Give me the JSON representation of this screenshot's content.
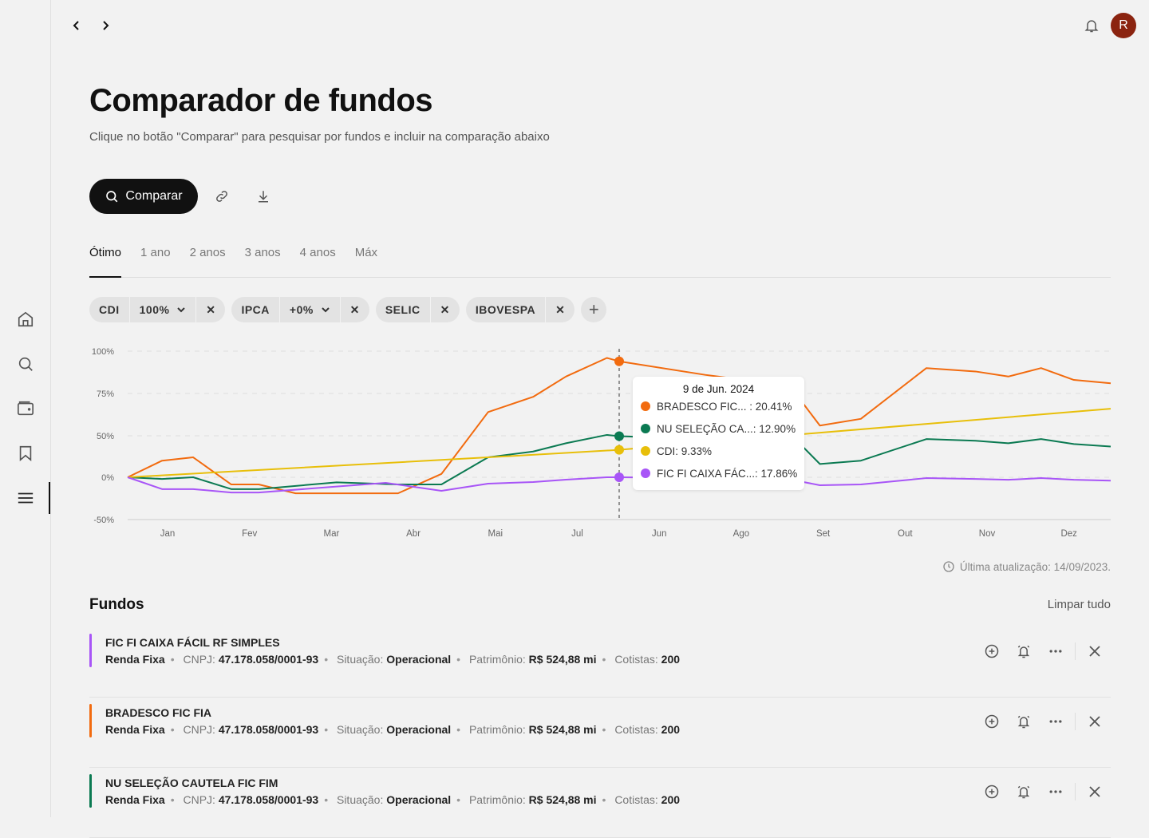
{
  "header": {
    "avatar_initial": "R"
  },
  "page": {
    "title": "Comparador de fundos",
    "subtitle": "Clique no botão \"Comparar\" para pesquisar por fundos e incluir na comparação abaixo",
    "compare_label": "Comparar"
  },
  "tabs": [
    {
      "label": "Ótimo",
      "active": true
    },
    {
      "label": "1 ano"
    },
    {
      "label": "2 anos"
    },
    {
      "label": "3 anos"
    },
    {
      "label": "4 anos"
    },
    {
      "label": "Máx"
    }
  ],
  "chips": {
    "cdi": "CDI",
    "cdi_pct": "100%",
    "ipca": "IPCA",
    "ipca_pct": "+0%",
    "selic": "SELIC",
    "ibovespa": "IBOVESPA"
  },
  "tooltip": {
    "date": "9 de Jun. 2024",
    "rows": [
      {
        "label": "BRADESCO FIC...   : 20.41%",
        "color": "#f26b0f"
      },
      {
        "label": "NU SELEÇÃO CA...: 12.90%",
        "color": "#0b7a52"
      },
      {
        "label": "CDI: 9.33%",
        "color": "#e8bf0a"
      },
      {
        "label": "FIC FI CAIXA FÁC...: 17.86%",
        "color": "#a855f7"
      }
    ]
  },
  "chart_data": {
    "type": "line",
    "yticks": [
      "100%",
      "75%",
      "50%",
      "0%",
      "-50%"
    ],
    "ytick_values": [
      100,
      75,
      50,
      0,
      -50
    ],
    "categories": [
      "Jan",
      "Fev",
      "Mar",
      "Abr",
      "Mai",
      "Jul",
      "Jun",
      "Ago",
      "Set",
      "Out",
      "Nov",
      "Dez"
    ],
    "x_range": [
      0,
      24
    ],
    "hover_index": 12,
    "series": [
      {
        "name": "BRADESCO FIC FIA",
        "color": "#f26b0f",
        "points": [
          [
            0,
            0
          ],
          [
            0.84,
            20
          ],
          [
            1.6,
            24
          ],
          [
            2.53,
            -8.5
          ],
          [
            3.2,
            -8.5
          ],
          [
            4.1,
            -19
          ],
          [
            6.6,
            -19
          ],
          [
            7.66,
            4
          ],
          [
            8.8,
            64
          ],
          [
            9.9,
            73
          ],
          [
            10.7,
            85
          ],
          [
            11.7,
            96
          ],
          [
            12,
            94
          ],
          [
            14.1,
            86
          ],
          [
            15.4,
            82
          ],
          [
            16.4,
            72
          ],
          [
            16.9,
            56
          ],
          [
            17.9,
            60
          ],
          [
            19.5,
            90
          ],
          [
            20.7,
            88
          ],
          [
            21.5,
            85
          ],
          [
            22.3,
            90
          ],
          [
            23.1,
            83
          ],
          [
            24,
            81
          ]
        ]
      },
      {
        "name": "NU SELEÇÃO CAUTELA FIC FIM",
        "color": "#0b7a52",
        "points": [
          [
            0,
            0
          ],
          [
            0.84,
            -2
          ],
          [
            1.6,
            0
          ],
          [
            2.53,
            -14
          ],
          [
            3.2,
            -14
          ],
          [
            5.1,
            -6
          ],
          [
            6.6,
            -8.5
          ],
          [
            7.66,
            -8.5
          ],
          [
            8.8,
            24
          ],
          [
            9.9,
            31
          ],
          [
            10.7,
            41
          ],
          [
            11.7,
            50.5
          ],
          [
            12,
            49.5
          ],
          [
            14,
            46
          ],
          [
            15.5,
            44
          ],
          [
            16.5,
            36
          ],
          [
            16.9,
            16
          ],
          [
            17.9,
            20
          ],
          [
            19.5,
            46
          ],
          [
            20.7,
            44
          ],
          [
            21.5,
            41
          ],
          [
            22.3,
            46
          ],
          [
            23.1,
            40
          ],
          [
            24,
            37
          ]
        ]
      },
      {
        "name": "CDI",
        "color": "#e8bf0a",
        "points": [
          [
            0,
            0
          ],
          [
            8.8,
            24
          ],
          [
            12,
            33
          ],
          [
            16.5,
            51
          ],
          [
            24,
            66
          ]
        ]
      },
      {
        "name": "FIC FI CAIXA FÁCIL RF SIMPLES",
        "color": "#a855f7",
        "points": [
          [
            0,
            0
          ],
          [
            0.84,
            -14
          ],
          [
            1.6,
            -14
          ],
          [
            2.53,
            -18
          ],
          [
            3.2,
            -18
          ],
          [
            5.1,
            -11
          ],
          [
            6.3,
            -6.6
          ],
          [
            7.66,
            -16
          ],
          [
            8.8,
            -7.5
          ],
          [
            9.9,
            -5.7
          ],
          [
            10.7,
            -2.8
          ],
          [
            11.7,
            0
          ],
          [
            12,
            0
          ],
          [
            14,
            -1
          ],
          [
            16.5,
            -5.7
          ],
          [
            16.9,
            -9.4
          ],
          [
            17.9,
            -8.5
          ],
          [
            19.5,
            -1
          ],
          [
            20.7,
            -2
          ],
          [
            21.5,
            -3
          ],
          [
            22.3,
            -1
          ],
          [
            23.1,
            -3
          ],
          [
            24,
            -4
          ]
        ]
      }
    ]
  },
  "updated": "Última atualização: 14/09/2023.",
  "funds": {
    "title": "Fundos",
    "clear_label": "Limpar tudo",
    "items": [
      {
        "name": "FIC FI CAIXA FÁCIL RF SIMPLES",
        "color": "#a855f7",
        "type": "Renda Fixa",
        "cnpj_label": "CNPJ:",
        "cnpj": "47.178.058/0001-93",
        "status_label": "Situação:",
        "status": "Operacional",
        "assets_label": "Patrimônio:",
        "assets": "R$ 524,88 mi",
        "holders_label": "Cotistas:",
        "holders": "200"
      },
      {
        "name": "BRADESCO FIC FIA",
        "color": "#f26b0f",
        "type": "Renda Fixa",
        "cnpj_label": "CNPJ:",
        "cnpj": "47.178.058/0001-93",
        "status_label": "Situação:",
        "status": "Operacional",
        "assets_label": "Patrimônio:",
        "assets": "R$ 524,88 mi",
        "holders_label": "Cotistas:",
        "holders": "200"
      },
      {
        "name": "NU SELEÇÃO CAUTELA FIC FIM",
        "color": "#0b7a52",
        "type": "Renda Fixa",
        "cnpj_label": "CNPJ:",
        "cnpj": "47.178.058/0001-93",
        "status_label": "Situação:",
        "status": "Operacional",
        "assets_label": "Patrimônio:",
        "assets": "R$ 524,88 mi",
        "holders_label": "Cotistas:",
        "holders": "200"
      }
    ]
  }
}
